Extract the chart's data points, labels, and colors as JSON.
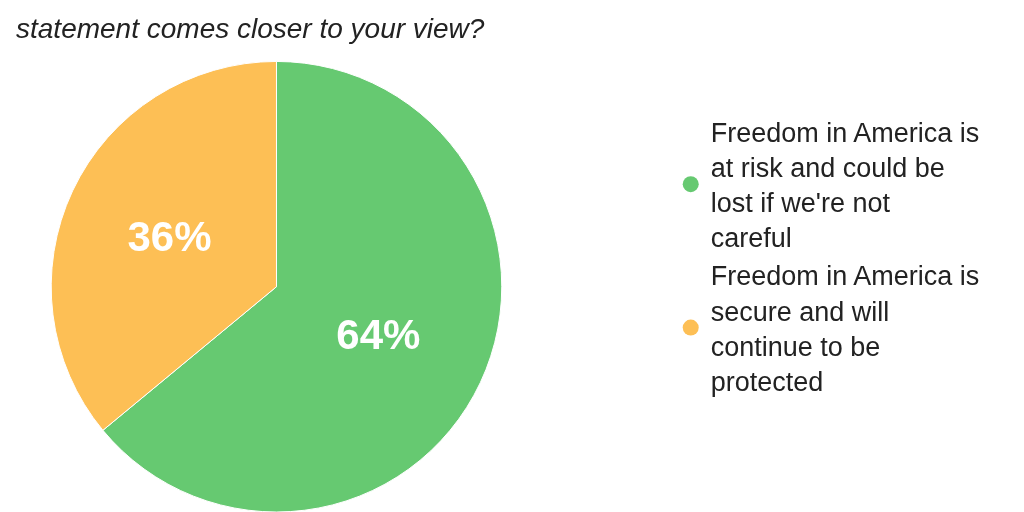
{
  "chart_data": {
    "type": "pie",
    "title": "statement comes closer to your view?",
    "categories": [
      "Freedom in America is at risk and could be lost if we're not careful",
      "Freedom in America is secure and will continue to be protected"
    ],
    "values": [
      64,
      36
    ],
    "colors": [
      "#66c971",
      "#fdbf55"
    ],
    "value_labels": [
      "64%",
      "36%"
    ],
    "legend": "right"
  }
}
